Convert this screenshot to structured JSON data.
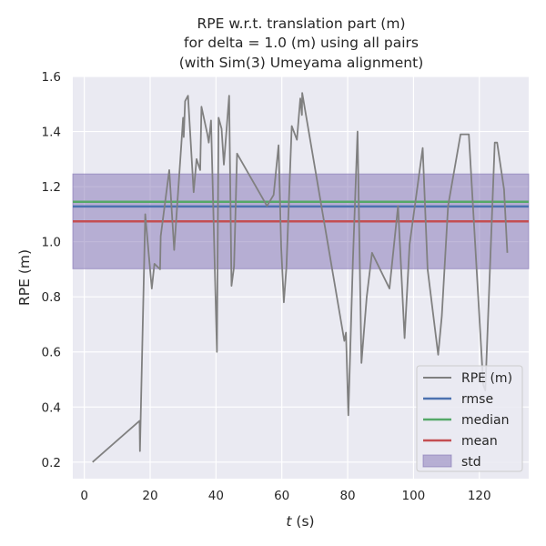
{
  "chart_data": {
    "type": "line",
    "title_lines": [
      "RPE w.r.t. translation part (m)",
      "for delta = 1.0 (m) using all pairs",
      "(with Sim(3) Umeyama alignment)"
    ],
    "xlabel_italic": "t",
    "xlabel_rest": " (s)",
    "ylabel": "RPE (m)",
    "xlim": [
      -3.5,
      135
    ],
    "ylim": [
      0.14,
      1.6
    ],
    "xticks": [
      0,
      20,
      40,
      60,
      80,
      100,
      120
    ],
    "yticks": [
      0.2,
      0.4,
      0.6,
      0.8,
      1.0,
      1.2,
      1.4,
      1.6
    ],
    "ytick_labels": [
      "0.2",
      "0.4",
      "0.6",
      "0.8",
      "1.0",
      "1.2",
      "1.4",
      "1.6"
    ],
    "grid": true,
    "legend_position": "lower-right",
    "series": [
      {
        "name": "RPE (m)",
        "color": "#808080",
        "x": [
          2.5,
          16.8,
          16.9,
          18.5,
          20.5,
          21.3,
          23.0,
          23.2,
          25.8,
          27.3,
          29.5,
          30.0,
          30.2,
          30.6,
          31.5,
          33.2,
          34.1,
          35.2,
          35.6,
          37.4,
          37.8,
          38.5,
          40.3,
          40.8,
          41.7,
          42.4,
          44.0,
          44.7,
          45.5,
          46.4,
          55.5,
          57.5,
          59.0,
          59.8,
          60.6,
          61.4,
          63.0,
          64.6,
          65.6,
          66.1,
          66.2,
          79.0,
          79.5,
          80.2,
          81.6,
          83.0,
          84.2,
          85.8,
          87.4,
          92.7,
          95.3,
          97.3,
          98.8,
          102.8,
          104.3,
          107.5,
          108.6,
          110.5,
          114.3,
          116.8,
          121.2,
          121.8,
          124.7,
          125.4,
          127.5,
          128.5
        ],
        "y": [
          0.2,
          0.35,
          0.24,
          1.1,
          0.83,
          0.92,
          0.9,
          1.02,
          1.26,
          0.97,
          1.36,
          1.45,
          1.38,
          1.51,
          1.53,
          1.18,
          1.3,
          1.26,
          1.49,
          1.39,
          1.36,
          1.44,
          0.6,
          1.45,
          1.41,
          1.28,
          1.53,
          0.84,
          0.91,
          1.32,
          1.13,
          1.17,
          1.35,
          0.98,
          0.78,
          0.91,
          1.42,
          1.37,
          1.52,
          1.46,
          1.54,
          0.64,
          0.67,
          0.37,
          0.93,
          1.4,
          0.56,
          0.8,
          0.96,
          0.83,
          1.13,
          0.65,
          0.99,
          1.34,
          0.9,
          0.59,
          0.73,
          1.13,
          1.39,
          1.39,
          0.48,
          0.46,
          1.36,
          1.36,
          1.19,
          0.96
        ]
      }
    ],
    "statistics": [
      {
        "name": "rmse",
        "value": 1.128,
        "color": "#4c72b0"
      },
      {
        "name": "median",
        "value": 1.145,
        "color": "#55a868"
      },
      {
        "name": "mean",
        "value": 1.074,
        "color": "#c44e52"
      }
    ],
    "std_band": {
      "name": "std",
      "lower": 0.902,
      "upper": 1.246,
      "color": "#8172b3",
      "alpha": 0.5
    },
    "colors": {
      "plot_bg": "#eaeaf2",
      "grid": "#ffffff",
      "page_bg": "#ffffff"
    }
  }
}
